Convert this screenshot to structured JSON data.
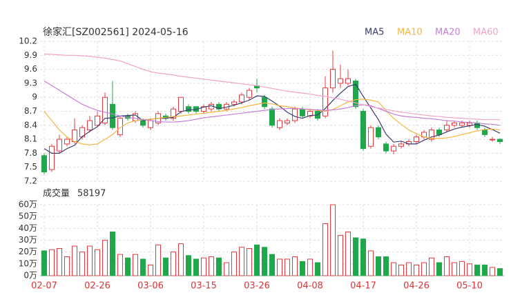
{
  "chart_data": [
    {
      "type": "candlestick",
      "title": "徐家汇[SZ002561] 2024-05-16",
      "categories": [
        "02-07",
        null,
        null,
        null,
        null,
        null,
        null,
        "02-26",
        null,
        null,
        null,
        null,
        null,
        null,
        "03-06",
        null,
        null,
        null,
        null,
        null,
        null,
        "03-15",
        null,
        null,
        null,
        null,
        null,
        null,
        "03-26",
        null,
        null,
        null,
        null,
        null,
        null,
        "04-08",
        null,
        null,
        null,
        null,
        null,
        null,
        "04-17",
        null,
        null,
        null,
        null,
        null,
        null,
        "04-26",
        null,
        null,
        null,
        null,
        null,
        null,
        "05-10",
        null,
        null,
        null,
        null
      ],
      "open": [
        7.75,
        7.45,
        7.85,
        8.0,
        8.05,
        8.15,
        8.3,
        8.4,
        8.45,
        8.85,
        8.2,
        8.6,
        8.5,
        8.5,
        8.35,
        8.45,
        8.6,
        8.55,
        8.7,
        8.8,
        8.8,
        8.7,
        8.75,
        8.85,
        8.75,
        8.85,
        8.9,
        9.0,
        9.25,
        9.0,
        8.75,
        8.35,
        8.45,
        8.5,
        8.75,
        8.6,
        8.7,
        8.6,
        9.2,
        9.3,
        9.3,
        9.35,
        8.7,
        7.95,
        8.35,
        8.0,
        7.85,
        7.95,
        8.0,
        8.05,
        8.15,
        8.1,
        8.3,
        8.3,
        8.4,
        8.4,
        8.4,
        8.45,
        8.3,
        8.1,
        8.1
      ],
      "high": [
        7.8,
        8.0,
        8.2,
        8.15,
        8.55,
        8.4,
        8.6,
        8.7,
        9.1,
        9.35,
        8.6,
        8.65,
        8.7,
        8.55,
        8.55,
        8.7,
        8.65,
        8.8,
        9.0,
        8.85,
        8.8,
        8.85,
        8.9,
        8.9,
        8.9,
        8.95,
        9.1,
        9.2,
        9.4,
        9.05,
        8.8,
        8.55,
        8.55,
        8.8,
        8.8,
        8.75,
        8.75,
        9.45,
        10.0,
        9.7,
        9.6,
        9.4,
        8.75,
        8.4,
        8.4,
        8.05,
        8.0,
        8.05,
        8.1,
        8.2,
        8.3,
        8.35,
        8.35,
        8.5,
        8.5,
        8.5,
        8.5,
        8.5,
        8.35,
        8.15,
        8.12
      ],
      "low": [
        7.35,
        7.4,
        7.8,
        7.95,
        8.0,
        8.1,
        8.25,
        8.35,
        8.4,
        8.3,
        8.15,
        8.5,
        8.45,
        8.35,
        8.3,
        8.4,
        8.5,
        8.5,
        8.65,
        8.65,
        8.65,
        8.65,
        8.7,
        8.7,
        8.7,
        8.8,
        8.85,
        8.95,
        9.1,
        8.75,
        8.35,
        8.3,
        8.4,
        8.45,
        8.55,
        8.55,
        8.5,
        8.55,
        9.1,
        9.2,
        9.25,
        8.75,
        7.85,
        7.9,
        8.1,
        7.8,
        7.78,
        7.9,
        7.95,
        8.0,
        8.1,
        8.05,
        8.15,
        8.25,
        8.35,
        8.35,
        8.35,
        8.3,
        8.15,
        8.05,
        8.0
      ],
      "close": [
        7.4,
        7.95,
        8.1,
        8.1,
        8.3,
        8.35,
        8.5,
        8.6,
        9.0,
        8.35,
        8.55,
        8.55,
        8.65,
        8.4,
        8.5,
        8.65,
        8.55,
        8.75,
        9.0,
        8.7,
        8.7,
        8.8,
        8.85,
        8.75,
        8.85,
        8.9,
        9.05,
        9.15,
        9.2,
        8.8,
        8.4,
        8.5,
        8.5,
        8.75,
        8.6,
        8.7,
        8.55,
        9.2,
        9.6,
        9.4,
        9.4,
        8.8,
        7.9,
        8.35,
        8.15,
        7.85,
        7.95,
        8.0,
        8.05,
        8.15,
        8.25,
        8.3,
        8.2,
        8.4,
        8.45,
        8.45,
        8.45,
        8.35,
        8.2,
        8.1,
        8.05
      ],
      "up_color": "#e8383d",
      "down_color": "#1fa84a",
      "ylim": [
        7.2,
        10.2
      ],
      "yticks": [
        10.2,
        9.9,
        9.6,
        9.3,
        9,
        8.7,
        8.4,
        8.1,
        7.8,
        7.5,
        7.2
      ],
      "grid": true,
      "series": [
        {
          "name": "MA5",
          "color": "#3a3a6e",
          "values": [
            7.9,
            7.8,
            7.8,
            7.9,
            7.97,
            8.16,
            8.27,
            8.37,
            8.55,
            8.56,
            8.6,
            8.61,
            8.62,
            8.5,
            8.53,
            8.55,
            8.55,
            8.57,
            8.69,
            8.73,
            8.74,
            8.79,
            8.82,
            8.76,
            8.79,
            8.83,
            8.88,
            8.94,
            9.03,
            9.02,
            8.92,
            8.81,
            8.68,
            8.59,
            8.55,
            8.61,
            8.62,
            8.76,
            8.93,
            9.09,
            9.23,
            9.28,
            9.02,
            8.77,
            8.52,
            8.21,
            8.04,
            8.06,
            8.0,
            8.0,
            8.08,
            8.15,
            8.19,
            8.26,
            8.32,
            8.36,
            8.39,
            8.42,
            8.38,
            8.31,
            8.23
          ]
        },
        {
          "name": "MA10",
          "color": "#f5b63f",
          "values": [
            8.7,
            8.5,
            8.3,
            8.15,
            8.05,
            8.0,
            7.98,
            8.0,
            8.1,
            8.2,
            8.35,
            8.45,
            8.5,
            8.52,
            8.53,
            8.55,
            8.57,
            8.59,
            8.6,
            8.62,
            8.64,
            8.66,
            8.68,
            8.7,
            8.72,
            8.75,
            8.78,
            8.82,
            8.85,
            8.88,
            8.86,
            8.82,
            8.8,
            8.77,
            8.75,
            8.73,
            8.72,
            8.7,
            8.74,
            8.82,
            8.9,
            8.95,
            8.96,
            8.94,
            8.9,
            8.72,
            8.55,
            8.42,
            8.3,
            8.22,
            8.15,
            8.12,
            8.12,
            8.13,
            8.16,
            8.2,
            8.24,
            8.28,
            8.31,
            8.32,
            8.3
          ]
        },
        {
          "name": "MA20",
          "color": "#c47fd8",
          "values": [
            9.35,
            9.25,
            9.15,
            9.05,
            8.95,
            8.85,
            8.78,
            8.72,
            8.68,
            8.64,
            8.6,
            8.57,
            8.55,
            8.52,
            8.5,
            8.48,
            8.47,
            8.47,
            8.48,
            8.5,
            8.53,
            8.56,
            8.58,
            8.6,
            8.62,
            8.64,
            8.66,
            8.68,
            8.7,
            8.72,
            8.74,
            8.75,
            8.76,
            8.76,
            8.75,
            8.74,
            8.73,
            8.72,
            8.73,
            8.75,
            8.78,
            8.82,
            8.84,
            8.82,
            8.76,
            8.7,
            8.64,
            8.6,
            8.58,
            8.57,
            8.55,
            8.54,
            8.52,
            8.5,
            8.49,
            8.47,
            8.46,
            8.45,
            8.43,
            8.42,
            8.4
          ]
        },
        {
          "name": "MA60",
          "color": "#f2a2c9",
          "values": [
            9.93,
            9.92,
            9.91,
            9.9,
            9.9,
            9.89,
            9.88,
            9.86,
            9.84,
            9.81,
            9.78,
            9.72,
            9.66,
            9.6,
            9.55,
            9.52,
            9.5,
            9.48,
            9.45,
            9.43,
            9.41,
            9.39,
            9.37,
            9.35,
            9.33,
            9.31,
            9.29,
            9.27,
            9.25,
            9.22,
            9.19,
            9.16,
            9.13,
            9.11,
            9.09,
            9.07,
            9.04,
            9.02,
            8.99,
            8.96,
            8.92,
            8.88,
            8.84,
            8.8,
            8.77,
            8.74,
            8.71,
            8.68,
            8.66,
            8.64,
            8.62,
            8.6,
            8.59,
            8.57,
            8.56,
            8.55,
            8.54,
            8.53,
            8.52,
            8.52,
            8.52
          ]
        }
      ]
    },
    {
      "type": "bar",
      "title": "成交量",
      "latest": 58197,
      "values": [
        21,
        22,
        23,
        16,
        25,
        20,
        25,
        22,
        30,
        37,
        18,
        15,
        18,
        14,
        9,
        26,
        15,
        20,
        27,
        17,
        14,
        15,
        16,
        15,
        11,
        20,
        24,
        23,
        26,
        24,
        18,
        14,
        14,
        16,
        12,
        14,
        11,
        44,
        60,
        34,
        37,
        32,
        31,
        21,
        16,
        16,
        11,
        9,
        11,
        9,
        11,
        15,
        11,
        16,
        11,
        12,
        10,
        9,
        9,
        7,
        6
      ],
      "ylim": [
        0,
        60
      ],
      "yticks": [
        {
          "value": 60,
          "label": "60万"
        },
        {
          "value": 50,
          "label": "50万"
        },
        {
          "value": 40,
          "label": "40万"
        },
        {
          "value": 30,
          "label": "30万"
        },
        {
          "value": 20,
          "label": "20万"
        },
        {
          "value": 10,
          "label": "10万"
        },
        {
          "value": 0,
          "label": "0万"
        }
      ],
      "grid": true
    }
  ]
}
